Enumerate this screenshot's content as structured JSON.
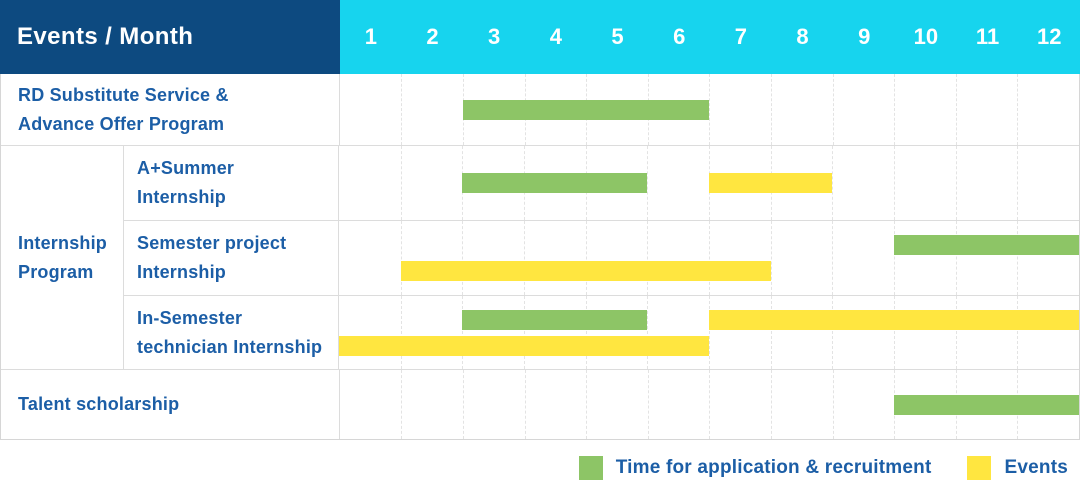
{
  "header": {
    "title": "Events / Month",
    "months": [
      "1",
      "2",
      "3",
      "4",
      "5",
      "6",
      "7",
      "8",
      "9",
      "10",
      "11",
      "12"
    ]
  },
  "colors": {
    "header_bg": "#0d4a80",
    "month_header_bg": "#17d4ee",
    "header_text": "#ffffff",
    "label_text": "#1c5ea6",
    "application_bar": "#8dc566",
    "event_bar": "#ffe640"
  },
  "body": {
    "rows": [
      {
        "kind": "single",
        "id": "rd-substitute-service",
        "label_lines": [
          "RD Substitute Service &",
          "Advance Offer Program"
        ],
        "bars": [
          {
            "type": "application",
            "start_month": 3,
            "end_month": 6,
            "line": "center"
          }
        ]
      },
      {
        "kind": "group",
        "id": "internship-program",
        "label_lines": [
          "Internship",
          "Program"
        ],
        "children": [
          {
            "id": "a-plus-summer-internship",
            "label_lines": [
              "A+Summer",
              "Internship"
            ],
            "bars": [
              {
                "type": "application",
                "start_month": 3,
                "end_month": 5,
                "line": "center"
              },
              {
                "type": "event",
                "start_month": 7,
                "end_month": 8,
                "line": "center"
              }
            ]
          },
          {
            "id": "semester-project-internship",
            "label_lines": [
              "Semester project",
              "Internship"
            ],
            "bars": [
              {
                "type": "application",
                "start_month": 10,
                "end_month": 12,
                "line": "top"
              },
              {
                "type": "event",
                "start_month": 2,
                "end_month": 7,
                "line": "bottom"
              }
            ]
          },
          {
            "id": "in-semester-technician-internship",
            "label_lines": [
              "In-Semester",
              "technician Internship"
            ],
            "bars": [
              {
                "type": "application",
                "start_month": 3,
                "end_month": 5,
                "line": "top"
              },
              {
                "type": "event",
                "start_month": 7,
                "end_month": 12,
                "line": "top"
              },
              {
                "type": "event",
                "start_month": 1,
                "end_month": 6,
                "line": "bottom"
              }
            ]
          }
        ]
      },
      {
        "kind": "single",
        "id": "talent-scholarship",
        "label_lines": [
          "Talent scholarship"
        ],
        "bars": [
          {
            "type": "application",
            "start_month": 10,
            "end_month": 12,
            "line": "center"
          }
        ]
      }
    ]
  },
  "legend": {
    "items": [
      {
        "type": "application",
        "label": "Time for application & recruitment"
      },
      {
        "type": "event",
        "label": "Events"
      }
    ]
  },
  "chart_data": {
    "type": "bar",
    "subtype": "gantt-schedule",
    "title": "Events / Month",
    "x_axis": {
      "label": "Month",
      "ticks": [
        1,
        2,
        3,
        4,
        5,
        6,
        7,
        8,
        9,
        10,
        11,
        12
      ],
      "range": [
        1,
        12
      ]
    },
    "legend": [
      "Time for application & recruitment",
      "Events"
    ],
    "legend_position": "bottom-right",
    "grid": "vertical-dashed",
    "tasks": [
      {
        "row": "RD Substitute Service & Advance Offer Program",
        "group": null,
        "series": "Time for application & recruitment",
        "start_month": 3,
        "end_month": 6
      },
      {
        "row": "A+Summer Internship",
        "group": "Internship Program",
        "series": "Time for application & recruitment",
        "start_month": 3,
        "end_month": 5
      },
      {
        "row": "A+Summer Internship",
        "group": "Internship Program",
        "series": "Events",
        "start_month": 7,
        "end_month": 8
      },
      {
        "row": "Semester project Internship",
        "group": "Internship Program",
        "series": "Time for application & recruitment",
        "start_month": 10,
        "end_month": 12
      },
      {
        "row": "Semester project Internship",
        "group": "Internship Program",
        "series": "Events",
        "start_month": 2,
        "end_month": 7
      },
      {
        "row": "In-Semester technician Internship",
        "group": "Internship Program",
        "series": "Time for application & recruitment",
        "start_month": 3,
        "end_month": 5
      },
      {
        "row": "In-Semester technician Internship",
        "group": "Internship Program",
        "series": "Events",
        "start_month": 7,
        "end_month": 12
      },
      {
        "row": "In-Semester technician Internship",
        "group": "Internship Program",
        "series": "Events",
        "start_month": 1,
        "end_month": 6
      },
      {
        "row": "Talent scholarship",
        "group": null,
        "series": "Time for application & recruitment",
        "start_month": 10,
        "end_month": 12
      }
    ]
  }
}
